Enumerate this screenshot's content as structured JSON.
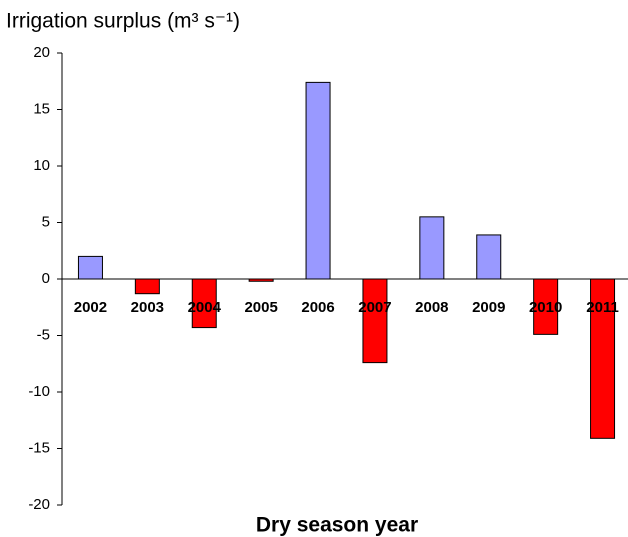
{
  "chart_data": {
    "type": "bar",
    "title": "Irrigation surplus (m³ s⁻¹)",
    "x_label": "Dry season year",
    "categories": [
      "2002",
      "2003",
      "2004",
      "2005",
      "2006",
      "2007",
      "2008",
      "2009",
      "2010",
      "2011"
    ],
    "values": [
      2,
      -1.3,
      -4.3,
      -0.2,
      17.4,
      -7.4,
      5.5,
      3.9,
      -4.9,
      -14.1
    ],
    "colors": [
      "#9999ff",
      "#ff0000",
      "#ff0000",
      "#ff0000",
      "#9999ff",
      "#ff0000",
      "#9999ff",
      "#9999ff",
      "#ff0000",
      "#ff0000"
    ],
    "ylim": [
      -20,
      20
    ],
    "yticks": [
      -20,
      -15,
      -10,
      -5,
      0,
      5,
      10,
      15,
      20
    ],
    "grid": false
  }
}
